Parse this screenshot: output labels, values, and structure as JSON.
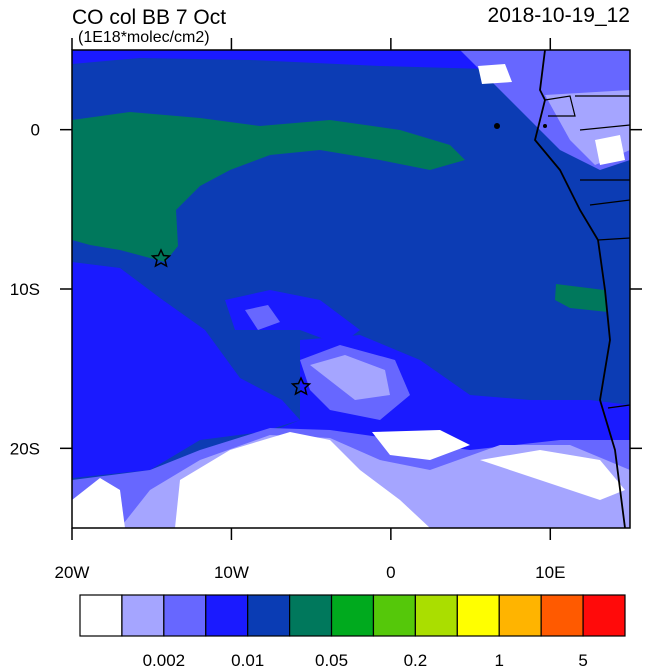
{
  "map": {
    "title": "CO col BB 7 Oct",
    "subtitle": "(1E18*molec/cm2)",
    "date": "2018-10-19_12",
    "xlim": [
      -20,
      15
    ],
    "ylim": [
      -25,
      5
    ],
    "xticks": [
      {
        "value": -20,
        "label": "20W"
      },
      {
        "value": -10,
        "label": "10W"
      },
      0,
      {
        "value": 10,
        "label": "10E"
      }
    ],
    "yticks": [
      0,
      {
        "value": -10,
        "label": "10S"
      },
      {
        "value": -20,
        "label": "20S"
      }
    ],
    "colorbar": {
      "colors": [
        "#ffffff",
        "#a5a5ff",
        "#6767ff",
        "#1a1aff",
        "#0a3cb4",
        "#00785c",
        "#00aa1e",
        "#55c80a",
        "#aade00",
        "#ffff00",
        "#ffb400",
        "#ff5a00",
        "#ff0a0a"
      ],
      "labels": [
        "0.002",
        "0.01",
        "0.05",
        "0.2",
        "1",
        "5"
      ]
    }
  }
}
